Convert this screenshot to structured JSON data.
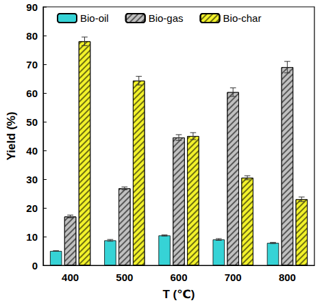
{
  "chart_data": {
    "type": "bar",
    "x_label": "T (℃)",
    "y_label": "Yield (%)",
    "categories": [
      "400",
      "500",
      "600",
      "700",
      "800"
    ],
    "series": [
      {
        "name": "Bio-oil",
        "color": "#36D3D6",
        "values": [
          5.0,
          8.7,
          10.4,
          9.0,
          7.8
        ],
        "errors": [
          0.1,
          0.3,
          0.2,
          0.3,
          0.2
        ]
      },
      {
        "name": "Bio-gas",
        "color": "#C0C0C0",
        "values": [
          17.0,
          26.8,
          44.5,
          60.3,
          69.0
        ],
        "errors": [
          0.5,
          0.5,
          1.0,
          1.5,
          2.0
        ]
      },
      {
        "name": "Bio-char",
        "color": "#F2F22A",
        "values": [
          78.0,
          64.3,
          45.0,
          30.5,
          23.0
        ],
        "errors": [
          1.5,
          1.5,
          1.2,
          0.7,
          0.8
        ]
      }
    ],
    "ylim": [
      0,
      90
    ],
    "yticks": [
      0,
      10,
      20,
      30,
      40,
      50,
      60,
      70,
      80,
      90
    ],
    "grid": false,
    "legend": "top"
  }
}
